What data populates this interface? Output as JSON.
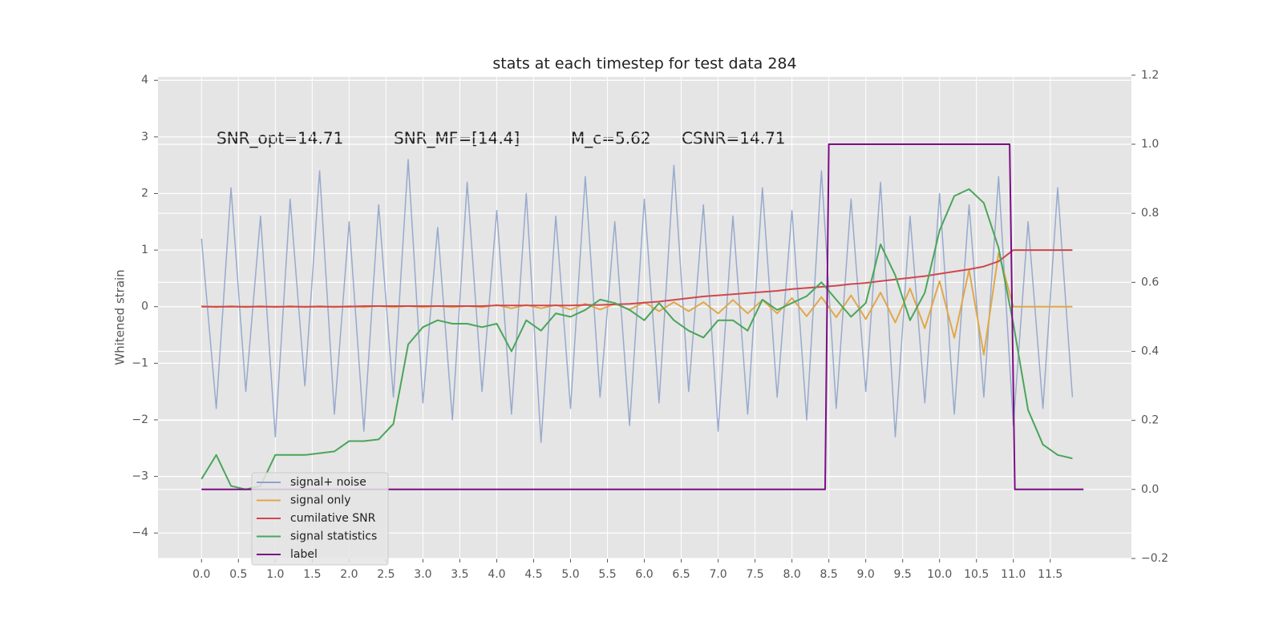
{
  "chart_data": {
    "type": "line",
    "title": "stats at each timestep for test data 284",
    "y_label": "Whitened strain",
    "annotations": [
      "SNR_opt=14.71",
      "SNR_MF=[14.4]",
      "M_c=5.62",
      "CSNR=14.71"
    ],
    "x": [
      0,
      0.2,
      0.4,
      0.6,
      0.8,
      1.0,
      1.2,
      1.4,
      1.6,
      1.8,
      2.0,
      2.2,
      2.4,
      2.6,
      2.8,
      3.0,
      3.2,
      3.4,
      3.6,
      3.8,
      4.0,
      4.2,
      4.4,
      4.6,
      4.8,
      5.0,
      5.2,
      5.4,
      5.6,
      5.8,
      6.0,
      6.2,
      6.4,
      6.6,
      6.8,
      7.0,
      7.2,
      7.4,
      7.6,
      7.8,
      8.0,
      8.2,
      8.4,
      8.6,
      8.8,
      9.0,
      9.2,
      9.4,
      9.6,
      9.8,
      10.0,
      10.2,
      10.4,
      10.6,
      10.8,
      11.0,
      11.2,
      11.4,
      11.6,
      11.8
    ],
    "series": [
      {
        "name": "signal+ noise",
        "color": "#8ea3cb",
        "values": [
          1.2,
          -1.8,
          2.1,
          -1.5,
          1.6,
          -2.3,
          1.9,
          -1.4,
          2.4,
          -1.9,
          1.5,
          -2.2,
          1.8,
          -1.6,
          2.6,
          -1.7,
          1.4,
          -2.0,
          2.2,
          -1.5,
          1.7,
          -1.9,
          2.0,
          -2.4,
          1.6,
          -1.8,
          2.3,
          -1.6,
          1.5,
          -2.1,
          1.9,
          -1.7,
          2.5,
          -1.5,
          1.8,
          -2.2,
          1.6,
          -1.9,
          2.1,
          -1.6,
          1.7,
          -2.0,
          2.4,
          -1.8,
          1.9,
          -1.5,
          2.2,
          -2.3,
          1.6,
          -1.7,
          2.0,
          -1.9,
          1.8,
          -1.6,
          2.3,
          -2.1,
          1.5,
          -1.8,
          2.1,
          -1.6
        ]
      },
      {
        "name": "signal only",
        "color": "#e0a84a",
        "values": [
          0.01,
          -0.01,
          0.01,
          -0.01,
          0.01,
          -0.01,
          0.01,
          -0.01,
          0.01,
          -0.01,
          0.01,
          -0.01,
          0.01,
          -0.01,
          0.01,
          -0.01,
          0.01,
          -0.01,
          0.01,
          -0.01,
          0.03,
          -0.03,
          0.03,
          -0.03,
          0.03,
          -0.05,
          0.05,
          -0.05,
          0.05,
          -0.05,
          0.08,
          -0.08,
          0.08,
          -0.08,
          0.08,
          -0.12,
          0.12,
          -0.12,
          0.12,
          -0.12,
          0.15,
          -0.17,
          0.17,
          -0.19,
          0.2,
          -0.22,
          0.25,
          -0.28,
          0.32,
          -0.38,
          0.45,
          -0.55,
          0.65,
          -0.85,
          0.95,
          0,
          0,
          0,
          0,
          0
        ]
      },
      {
        "name": "cumilative SNR",
        "color": "#d0474f",
        "values": [
          0,
          0,
          0,
          0,
          0,
          0,
          0,
          0,
          0,
          0,
          0,
          0.01,
          0.01,
          0.01,
          0.01,
          0.01,
          0.01,
          0.01,
          0.01,
          0.01,
          0.02,
          0.02,
          0.02,
          0.02,
          0.02,
          0.02,
          0.03,
          0.03,
          0.04,
          0.05,
          0.07,
          0.09,
          0.12,
          0.15,
          0.18,
          0.2,
          0.22,
          0.24,
          0.26,
          0.28,
          0.31,
          0.33,
          0.35,
          0.37,
          0.4,
          0.42,
          0.45,
          0.48,
          0.51,
          0.54,
          0.58,
          0.62,
          0.66,
          0.71,
          0.8,
          1.0,
          1.0,
          1.0,
          1.0,
          1.0
        ]
      },
      {
        "name": "signal statistics",
        "color": "#4aa55a",
        "axis": "y2",
        "values": [
          0.03,
          0.1,
          0.01,
          0.0,
          0.01,
          0.1,
          0.1,
          0.1,
          0.105,
          0.11,
          0.14,
          0.14,
          0.145,
          0.19,
          0.42,
          0.47,
          0.49,
          0.48,
          0.48,
          0.47,
          0.48,
          0.4,
          0.49,
          0.46,
          0.51,
          0.5,
          0.52,
          0.55,
          0.54,
          0.52,
          0.49,
          0.54,
          0.49,
          0.46,
          0.44,
          0.49,
          0.49,
          0.46,
          0.55,
          0.52,
          0.54,
          0.56,
          0.6,
          0.55,
          0.5,
          0.54,
          0.71,
          0.62,
          0.49,
          0.57,
          0.75,
          0.85,
          0.87,
          0.83,
          0.7,
          0.48,
          0.23,
          0.13,
          0.1,
          0.09
        ]
      },
      {
        "name": "label",
        "color": "#7b0d85",
        "axis": "y2",
        "x": [
          0,
          8.45,
          8.5,
          10.95,
          11.02,
          11.95
        ],
        "values": [
          0,
          0,
          1,
          1,
          0,
          0
        ]
      }
    ],
    "xlim": [
      -0.59,
      12.6
    ],
    "ylim": [
      -4.45,
      4.06
    ],
    "y2lim": [
      -0.2,
      1.195
    ],
    "xticks": [
      {
        "value": 0,
        "label": "0.0"
      },
      0.5,
      {
        "value": 1,
        "label": "1.0"
      },
      1.5,
      {
        "value": 2,
        "label": "2.0"
      },
      2.5,
      {
        "value": 3,
        "label": "3.0"
      },
      3.5,
      {
        "value": 4,
        "label": "4.0"
      },
      4.5,
      {
        "value": 5,
        "label": "5.0"
      },
      5.5,
      {
        "value": 6,
        "label": "6.0"
      },
      6.5,
      {
        "value": 7,
        "label": "7.0"
      },
      7.5,
      {
        "value": 8,
        "label": "8.0"
      },
      8.5,
      {
        "value": 9,
        "label": "9.0"
      },
      9.5,
      {
        "value": 10,
        "label": "10.0"
      },
      10.5,
      {
        "value": 11,
        "label": "11.0"
      },
      11.5
    ],
    "yticks": [
      {
        "value": -4,
        "label": "−4"
      },
      {
        "value": -3,
        "label": "−3"
      },
      {
        "value": -2,
        "label": "−2"
      },
      {
        "value": -1,
        "label": "−1"
      },
      0,
      1,
      2,
      3,
      4
    ],
    "y2ticks": [
      {
        "value": -0.2,
        "label": "−0.2"
      },
      {
        "value": 0,
        "label": "0.0"
      },
      0.2,
      0.4,
      0.6,
      0.8,
      {
        "value": 1,
        "label": "1.0"
      },
      1.2
    ],
    "grid": true,
    "legend_position": "lower left"
  }
}
